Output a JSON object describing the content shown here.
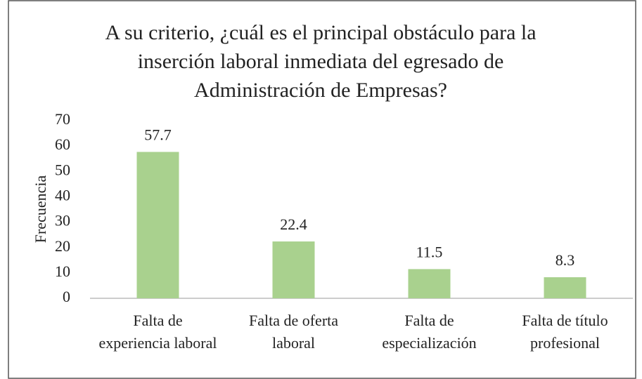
{
  "chart_data": {
    "type": "bar",
    "title": "A su criterio, ¿cuál es el principal obstáculo para la inserción laboral inmediata del egresado de Administración de Empresas?",
    "y_label": "Frecuencia",
    "categories": [
      "Falta de experiencia laboral",
      "Falta de oferta laboral",
      "Falta de especialización",
      "Falta de título profesional"
    ],
    "values": [
      57.7,
      22.4,
      11.5,
      8.3
    ],
    "color": "#a9d18e",
    "ylim": [
      0,
      70
    ],
    "yticks": [
      0,
      10,
      20,
      30,
      40,
      50,
      60,
      70
    ],
    "grid": false
  }
}
